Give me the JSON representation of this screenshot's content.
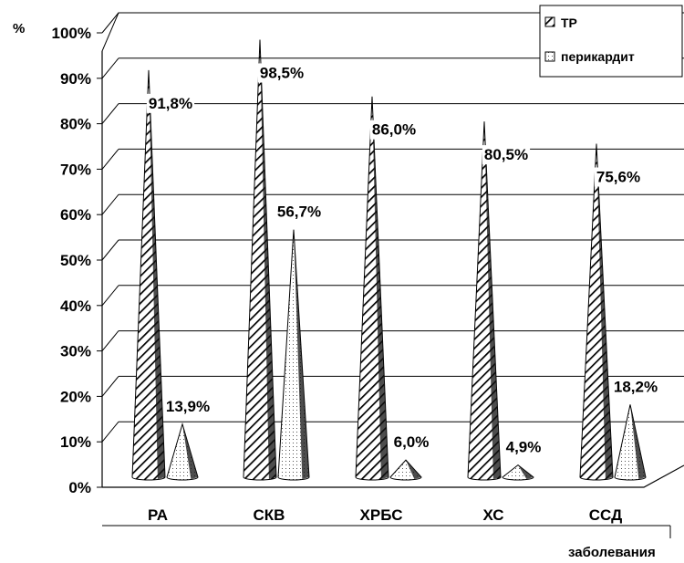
{
  "chart_data": {
    "type": "bar",
    "title": "",
    "ylabel": "%",
    "xlabel": "заболевания",
    "ylim": [
      0,
      100
    ],
    "yticks": [
      "0%",
      "10%",
      "20%",
      "30%",
      "40%",
      "50%",
      "60%",
      "70%",
      "80%",
      "90%",
      "100%"
    ],
    "categories": [
      "РА",
      "СКВ",
      "ХРБС",
      "ХС",
      "ССД"
    ],
    "series": [
      {
        "name": "ТР",
        "values": [
          91.8,
          98.5,
          86.0,
          80.5,
          75.6
        ],
        "labels": [
          "91,8%",
          "98,5%",
          "86,0%",
          "80,5%",
          "75,6%"
        ],
        "pattern": "diagonal-hatch"
      },
      {
        "name": "перикардит",
        "values": [
          13.9,
          56.7,
          6.0,
          4.9,
          18.2
        ],
        "labels": [
          "13,9%",
          "56,7%",
          "6,0%",
          "4,9%",
          "18,2%"
        ],
        "pattern": "dotted"
      }
    ],
    "grid": true,
    "legend_position": "top-right"
  }
}
